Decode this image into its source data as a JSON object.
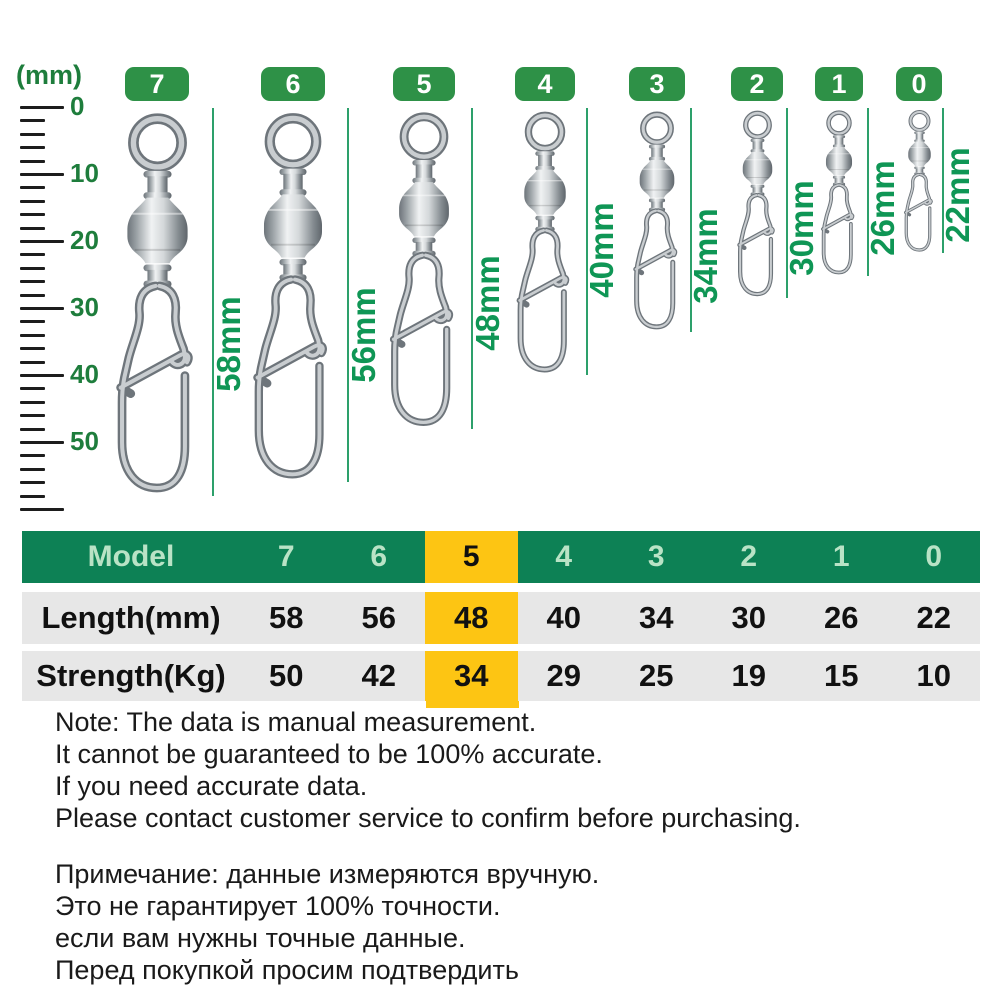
{
  "ruler": {
    "unit_label": "(mm)",
    "tick_labels": [
      "0",
      "10",
      "20",
      "30",
      "40",
      "50"
    ]
  },
  "models": [
    {
      "model": "7",
      "length_label": "58mm",
      "length_mm": 58,
      "strength_kg": 50
    },
    {
      "model": "6",
      "length_label": "56mm",
      "length_mm": 56,
      "strength_kg": 42
    },
    {
      "model": "5",
      "length_label": "48mm",
      "length_mm": 48,
      "strength_kg": 34
    },
    {
      "model": "4",
      "length_label": "40mm",
      "length_mm": 40,
      "strength_kg": 29
    },
    {
      "model": "3",
      "length_label": "34mm",
      "length_mm": 34,
      "strength_kg": 25
    },
    {
      "model": "2",
      "length_label": "30mm",
      "length_mm": 30,
      "strength_kg": 19
    },
    {
      "model": "1",
      "length_label": "26mm",
      "length_mm": 26,
      "strength_kg": 15
    },
    {
      "model": "0",
      "length_label": "22mm",
      "length_mm": 22,
      "strength_kg": 10
    }
  ],
  "table": {
    "header_label": "Model",
    "highlighted_model": "5",
    "rows": [
      {
        "label": "Length(mm)",
        "values": [
          "58",
          "56",
          "48",
          "40",
          "34",
          "30",
          "26",
          "22"
        ]
      },
      {
        "label": "Strength(Kg)",
        "values": [
          "50",
          "42",
          "34",
          "29",
          "25",
          "19",
          "15",
          "10"
        ]
      }
    ]
  },
  "notes_en": [
    "Note: The data is manual measurement.",
    "It cannot be guaranteed to be 100% accurate.",
    "If you need accurate data.",
    "Please contact customer service to confirm before purchasing."
  ],
  "notes_ru": [
    "Примечание: данные измеряются вручную.",
    "Это не гарантирует 100% точности.",
    "если вам нужны точные данные.",
    "Перед покупкой просим подтвердить"
  ],
  "colors": {
    "badge_green": "#2e9147",
    "header_green": "#0d8155",
    "highlight_yellow": "#fdc513",
    "measure_green": "#0f9655",
    "ruler_green": "#1e7d3c",
    "row_gray": "#e7e7e7"
  }
}
